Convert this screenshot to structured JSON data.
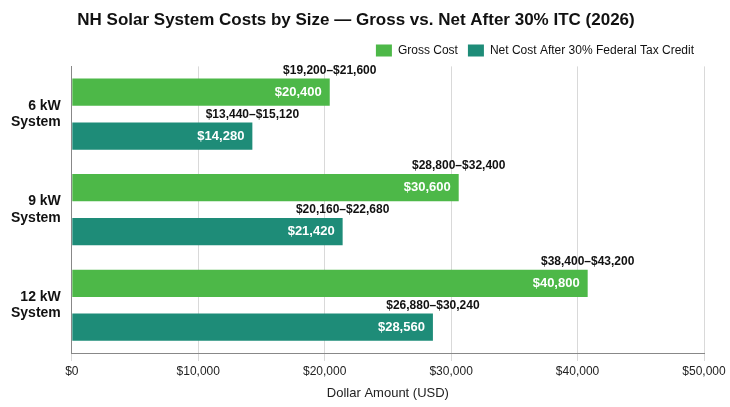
{
  "chart_data": {
    "type": "bar",
    "orientation": "horizontal",
    "stacked": false,
    "title": "NH Solar System Costs by Size — Gross vs. Net After 30% ITC (2026)",
    "x_label": "Dollar Amount (USD)",
    "categories": [
      "6 kW System",
      "9 kW System",
      "12 kW System"
    ],
    "series": [
      {
        "name": "Gross Cost",
        "color": "#4db848",
        "values": [
          20400,
          30600,
          40800
        ],
        "value_labels": [
          "$20,400",
          "$30,600",
          "$40,800"
        ],
        "range_low": [
          19200,
          28800,
          38400
        ],
        "range_high": [
          21600,
          32400,
          43200
        ],
        "range_labels": [
          "$19,200–$21,600",
          "$28,800–$32,400",
          "$38,400–$43,200"
        ]
      },
      {
        "name": "Net Cost After 30% Federal Tax Credit",
        "color": "#1e8c78",
        "values": [
          14280,
          21420,
          28560
        ],
        "value_labels": [
          "$14,280",
          "$21,420",
          "$28,560"
        ],
        "range_low": [
          13440,
          20160,
          26880
        ],
        "range_high": [
          15120,
          22680,
          30240
        ],
        "range_labels": [
          "$13,440–$15,120",
          "$20,160–$22,680",
          "$26,880–$30,240"
        ]
      }
    ],
    "xlim": [
      0,
      50000
    ],
    "xticks": [
      {
        "value": 0,
        "label": "$0"
      },
      {
        "value": 10000,
        "label": "$10,000"
      },
      {
        "value": 20000,
        "label": "$20,000"
      },
      {
        "value": 30000,
        "label": "$30,000"
      },
      {
        "value": 40000,
        "label": "$40,000"
      },
      {
        "value": 50000,
        "label": "$50,000"
      }
    ],
    "grid": true,
    "legend": "top right",
    "data_labels": true
  }
}
